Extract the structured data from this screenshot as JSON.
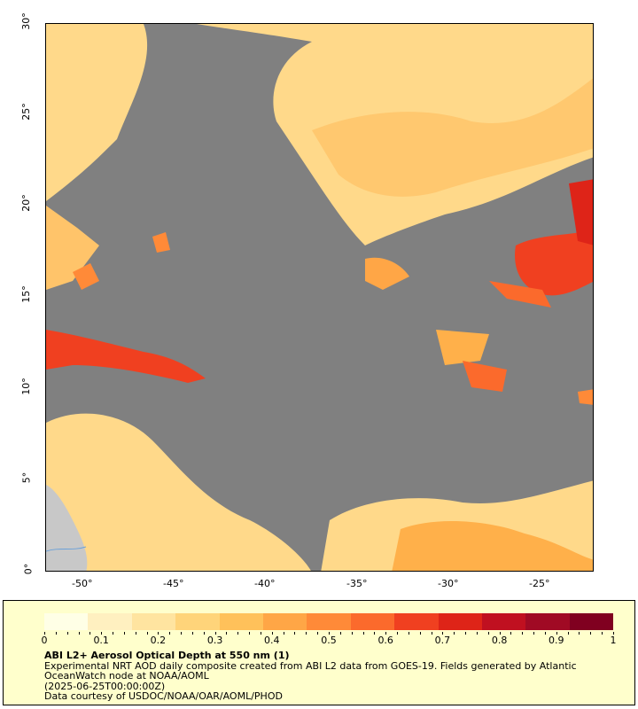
{
  "map": {
    "ocean_color": "#808080",
    "land_color": "#c8c8c8",
    "coast_color": "#6aa0d8",
    "lon_ticks": [
      "-50°",
      "-45°",
      "-40°",
      "-35°",
      "-30°",
      "-25°"
    ],
    "lat_ticks": [
      "0°",
      "5°",
      "10°",
      "15°",
      "20°",
      "25°",
      "30°"
    ]
  },
  "legend": {
    "ticks": [
      "0",
      "0.1",
      "0.2",
      "0.3",
      "0.4",
      "0.5",
      "0.6",
      "0.7",
      "0.8",
      "0.9",
      "1"
    ],
    "colors": [
      "#ffffe6",
      "#fff0c0",
      "#ffe4a0",
      "#ffd47a",
      "#ffc15a",
      "#ffa646",
      "#ff8a38",
      "#fb6a2c",
      "#f04020",
      "#de2418",
      "#c01020",
      "#a00a24",
      "#800020"
    ]
  },
  "caption": {
    "title": "ABI L2+ Aerosol Optical Depth at 550 nm (1)",
    "line1": "Experimental NRT AOD daily composite created from ABI L2 data from GOES-19. Fields generated by Atlantic",
    "line2": "OceanWatch node at NOAA/AOML",
    "line3": "(2025-06-25T00:00:00Z)",
    "line4": "Data courtesy of USDOC/NOAA/OAR/AOML/PHOD"
  }
}
